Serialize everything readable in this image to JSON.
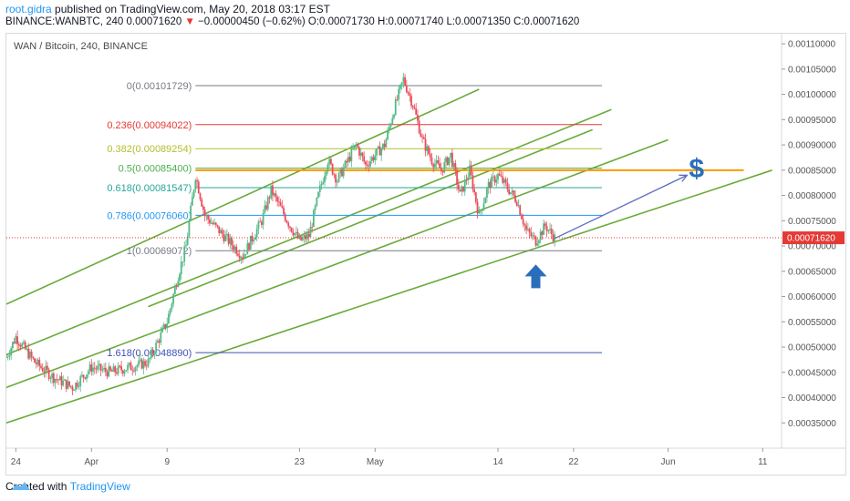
{
  "header": {
    "publisher": "root.gidra",
    "published_text": "published on TradingView.com, May 20, 2018 03:17 EST",
    "symbol": "BINANCE:WANBTC, 240",
    "last": "0.00071620",
    "change_arrow": "▼",
    "change": "−0.00000450 (−0.62%)",
    "ohlc": "O:0.00071730 H:0.00071740 L:0.00071350 C:0.00071620"
  },
  "footer": {
    "created_with": "Created with",
    "brand": "TradingView"
  },
  "chart_data": {
    "type": "candlestick",
    "title": "WAN / Bitcoin, 240, BINANCE",
    "symbol": "WANBTC",
    "timeframe": "240",
    "y_axis": {
      "side": "right",
      "ylim": [
        0.0003,
        0.00112
      ],
      "ticks": [
        "0.00110000",
        "0.00105000",
        "0.00100000",
        "0.00095000",
        "0.00090000",
        "0.00085000",
        "0.00080000",
        "0.00075000",
        "0.00070000",
        "0.00065000",
        "0.00060000",
        "0.00055000",
        "0.00050000",
        "0.00045000",
        "0.00040000",
        "0.00035000"
      ],
      "last_price_label": "0.00071620",
      "last_price_color": "#e53935"
    },
    "x_axis": {
      "date_range": [
        "2018-03-23",
        "2018-06-13"
      ],
      "ticks": [
        {
          "label": "24",
          "date": "2018-03-24"
        },
        {
          "label": "Apr",
          "date": "2018-04-01"
        },
        {
          "label": "9",
          "date": "2018-04-09"
        },
        {
          "label": "23",
          "date": "2018-04-23"
        },
        {
          "label": "May",
          "date": "2018-05-01"
        },
        {
          "label": "14",
          "date": "2018-05-14"
        },
        {
          "label": "22",
          "date": "2018-05-22"
        },
        {
          "label": "Jun",
          "date": "2018-06-01"
        },
        {
          "label": "11",
          "date": "2018-06-11"
        }
      ]
    },
    "price_path": [
      [
        "2018-03-23",
        0.00048
      ],
      [
        "2018-03-24",
        0.00052
      ],
      [
        "2018-03-26",
        0.00047
      ],
      [
        "2018-03-28",
        0.00044
      ],
      [
        "2018-03-30",
        0.00042
      ],
      [
        "2018-04-01",
        0.00046
      ],
      [
        "2018-04-03",
        0.00045
      ],
      [
        "2018-04-05",
        0.00046
      ],
      [
        "2018-04-07",
        0.00047
      ],
      [
        "2018-04-09",
        0.00055
      ],
      [
        "2018-04-10",
        0.00063
      ],
      [
        "2018-04-11",
        0.0007
      ],
      [
        "2018-04-12",
        0.00084
      ],
      [
        "2018-04-13",
        0.00076
      ],
      [
        "2018-04-15",
        0.00072
      ],
      [
        "2018-04-17",
        0.00068
      ],
      [
        "2018-04-19",
        0.00075
      ],
      [
        "2018-04-20",
        0.00081
      ],
      [
        "2018-04-22",
        0.00074
      ],
      [
        "2018-04-23",
        0.00071
      ],
      [
        "2018-04-24",
        0.00072
      ],
      [
        "2018-04-25",
        0.0008
      ],
      [
        "2018-04-26",
        0.00087
      ],
      [
        "2018-04-27",
        0.00083
      ],
      [
        "2018-04-29",
        0.0009
      ],
      [
        "2018-04-30",
        0.00086
      ],
      [
        "2018-05-02",
        0.0009
      ],
      [
        "2018-05-03",
        0.00097
      ],
      [
        "2018-05-04",
        0.00103
      ],
      [
        "2018-05-05",
        0.00098
      ],
      [
        "2018-05-06",
        0.00091
      ],
      [
        "2018-05-07",
        0.00087
      ],
      [
        "2018-05-08",
        0.00085
      ],
      [
        "2018-05-09",
        0.00088
      ],
      [
        "2018-05-10",
        0.0008
      ],
      [
        "2018-05-11",
        0.00085
      ],
      [
        "2018-05-12",
        0.00076
      ],
      [
        "2018-05-13",
        0.00082
      ],
      [
        "2018-05-14",
        0.00084
      ],
      [
        "2018-05-16",
        0.00079
      ],
      [
        "2018-05-17",
        0.00073
      ],
      [
        "2018-05-18",
        0.00071
      ],
      [
        "2018-05-19",
        0.00074
      ],
      [
        "2018-05-20",
        0.000716
      ]
    ],
    "fibonacci": {
      "levels": [
        {
          "label": "0(0.00101729)",
          "ratio": 0,
          "value": 0.00101729,
          "color": "#787b86"
        },
        {
          "label": "0.236(0.00094022)",
          "ratio": 0.236,
          "value": 0.00094022,
          "color": "#e53935"
        },
        {
          "label": "0.382(0.00089254)",
          "ratio": 0.382,
          "value": 0.00089254,
          "color": "#b5bd2f"
        },
        {
          "label": "0.5(0.00085400)",
          "ratio": 0.5,
          "value": 0.000854,
          "color": "#4caf50"
        },
        {
          "label": "0.618(0.00081547)",
          "ratio": 0.618,
          "value": 0.00081547,
          "color": "#26a69a"
        },
        {
          "label": "0.786(0.00076060)",
          "ratio": 0.786,
          "value": 0.0007606,
          "color": "#2196f3"
        },
        {
          "label": "1(0.00069072)",
          "ratio": 1,
          "value": 0.00069072,
          "color": "#787b86"
        },
        {
          "label": "1.618(0.00048890)",
          "ratio": 1.618,
          "value": 0.0004889,
          "color": "#3f51b5"
        }
      ],
      "from": "2018-04-12",
      "to": "2018-05-25"
    },
    "horizontal_lines": [
      {
        "value": 0.00085,
        "from": "2018-04-12",
        "to": "2018-06-09",
        "color": "#ff9800"
      }
    ],
    "trend_channel": {
      "color": "#6aaa3a",
      "lines": [
        {
          "from": [
            "2018-03-23",
            0.000585
          ],
          "to": [
            "2018-05-12",
            0.00101
          ]
        },
        {
          "from": [
            "2018-04-07",
            0.00058
          ],
          "to": [
            "2018-05-24",
            0.00093
          ]
        },
        {
          "from": [
            "2018-03-23",
            0.000485
          ],
          "to": [
            "2018-05-26",
            0.00097
          ]
        },
        {
          "from": [
            "2018-03-23",
            0.00042
          ],
          "to": [
            "2018-06-01",
            0.00091
          ]
        },
        {
          "from": [
            "2018-03-23",
            0.00035
          ],
          "to": [
            "2018-06-12",
            0.00085
          ]
        }
      ]
    },
    "projection_arrow": {
      "from": [
        "2018-05-20",
        0.000715
      ],
      "to": [
        "2018-06-03",
        0.00084
      ],
      "color": "#5c6bc0"
    },
    "annotations": [
      {
        "type": "up-arrow",
        "x": "2018-05-18",
        "y": 0.00064,
        "color": "#2a6ebb"
      },
      {
        "type": "text",
        "text": "$",
        "x": "2018-06-04",
        "y": 0.000855,
        "color": "#2a6ebb"
      }
    ],
    "last_price_line": {
      "value": 0.0007162,
      "color": "#e53935",
      "style": "dotted"
    }
  }
}
